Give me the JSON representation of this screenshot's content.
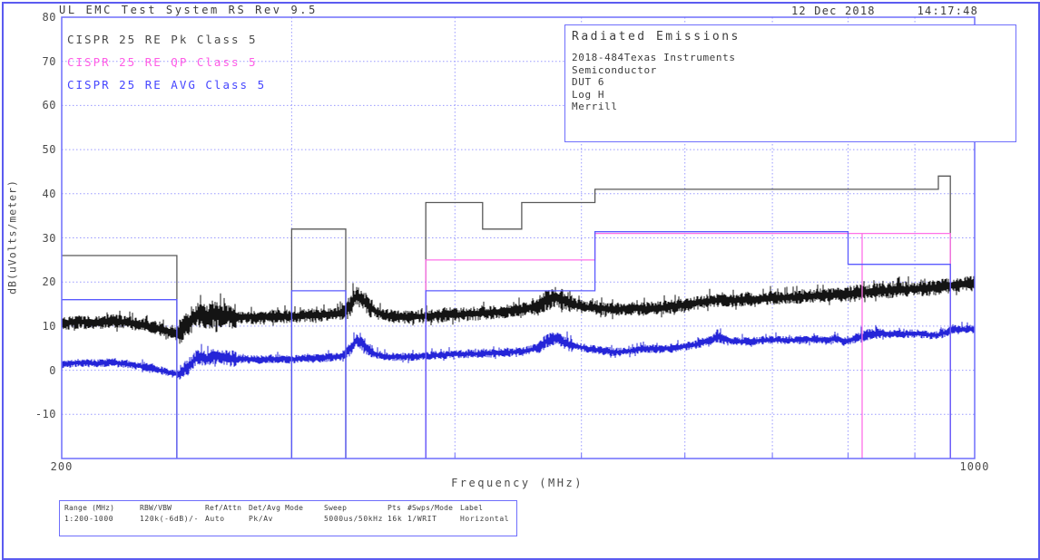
{
  "window": {
    "title": "UL EMC Test System RS Rev 9.5",
    "date": "12 Dec 2018",
    "time": "14:17:48"
  },
  "legend": [
    {
      "label": "CISPR 25 RE Pk Class 5",
      "color": "#4a4a4a"
    },
    {
      "label": "CISPR 25 RE QP Class 5",
      "color": "#ff5ce6"
    },
    {
      "label": "CISPR 25 RE AVG Class 5",
      "color": "#4646ff"
    }
  ],
  "info_box": {
    "title": "Radiated Emissions",
    "lines": [
      "2018-484Texas Instruments",
      "Semiconductor",
      "DUT 6",
      "Log H",
      "Merrill"
    ]
  },
  "axes": {
    "ylabel": "dB(uVolts/meter)",
    "xlabel": "Frequency (MHz)",
    "yticks": [
      "80",
      "70",
      "60",
      "50",
      "40",
      "30",
      "20",
      "10",
      "0",
      "-10"
    ],
    "xticks": [
      {
        "label": "200",
        "f": 200
      },
      {
        "label": "1000",
        "f": 1000
      }
    ]
  },
  "settings_table": {
    "columns": [
      {
        "header": "Range (MHz)",
        "value": "1:200-1000"
      },
      {
        "header": "RBW/VBW",
        "value": "120k(-6dB)/-"
      },
      {
        "header": "Ref/Attn",
        "value": "Auto"
      },
      {
        "header": "Det/Avg Mode",
        "value": "Pk/Av"
      },
      {
        "header": "Sweep",
        "value": "5000us/50kHz"
      },
      {
        "header": "Pts",
        "value": "16k"
      },
      {
        "header": "#Swps/Mode",
        "value": "1/WRIT"
      },
      {
        "header": "Label",
        "value": "Horizontal"
      }
    ]
  },
  "colors": {
    "frame": "#6e6efc",
    "grid": "#9a9aff",
    "pk_limit": "#595959",
    "qp_limit": "#ff70e8",
    "avg_limit": "#5a5aff",
    "pk_trace": "#141414",
    "avg_trace": "#2525d8"
  },
  "chart_data": {
    "type": "line",
    "title": "Radiated Emissions",
    "x_axis": {
      "label": "Frequency (MHz)",
      "scale": "log",
      "min": 200,
      "max": 1000,
      "gridlines": [
        300,
        400,
        500,
        600,
        700,
        800,
        900
      ]
    },
    "y_axis": {
      "label": "dB(uVolts/meter)",
      "min": -20,
      "max": 80,
      "tick_step": 10,
      "grid_values": [
        70,
        60,
        50,
        40,
        30,
        20,
        10,
        0,
        -10
      ]
    },
    "limits": [
      {
        "name": "CISPR 25 RE Pk Class 5",
        "colorKey": "pk_limit",
        "segments": [
          [
            200,
            245,
            26
          ],
          [
            300,
            330,
            32
          ],
          [
            380,
            420,
            38
          ],
          [
            420,
            450,
            32
          ],
          [
            450,
            512,
            38
          ],
          [
            512,
            938,
            41
          ],
          [
            938,
            958,
            44
          ]
        ],
        "breaks": []
      },
      {
        "name": "CISPR 25 RE QP Class 5",
        "colorKey": "qp_limit",
        "segments": [
          [
            380,
            512,
            25
          ],
          [
            512,
            820,
            31
          ],
          [
            820,
            958,
            31
          ]
        ],
        "breaks": [
          820
        ]
      },
      {
        "name": "CISPR 25 RE AVG Class 5",
        "colorKey": "avg_limit",
        "segments": [
          [
            200,
            245,
            16
          ],
          [
            300,
            330,
            18
          ],
          [
            380,
            512,
            18
          ],
          [
            512,
            800,
            31.4
          ],
          [
            800,
            958,
            24
          ]
        ],
        "breaks": []
      }
    ],
    "traces": [
      {
        "name": "Peak detector trace",
        "colorKey": "pk_trace",
        "seed": 7,
        "noise_db": 1.45,
        "clusters": [
          [
            246,
            272,
            1.8
          ],
          [
            328,
            346,
            1.5
          ],
          [
            462,
            492,
            1.5
          ],
          [
            790,
            1000,
            1.15
          ]
        ],
        "points": [
          [
            200,
            10.6
          ],
          [
            206,
            11.0
          ],
          [
            212,
            10.8
          ],
          [
            218,
            11.2
          ],
          [
            224,
            10.8
          ],
          [
            230,
            10.3
          ],
          [
            236,
            9.6
          ],
          [
            242,
            8.8
          ],
          [
            246,
            8.6
          ],
          [
            250,
            10.5
          ],
          [
            254,
            12.6
          ],
          [
            258,
            12.1
          ],
          [
            263,
            12.8
          ],
          [
            268,
            12.2
          ],
          [
            275,
            12.1
          ],
          [
            283,
            12.0
          ],
          [
            291,
            12.2
          ],
          [
            299,
            12.2
          ],
          [
            307,
            12.4
          ],
          [
            315,
            12.5
          ],
          [
            323,
            12.7
          ],
          [
            329,
            13.1
          ],
          [
            333,
            14.8
          ],
          [
            336,
            16.8
          ],
          [
            339,
            16.4
          ],
          [
            343,
            14.9
          ],
          [
            348,
            13.2
          ],
          [
            355,
            12.4
          ],
          [
            363,
            12.1
          ],
          [
            372,
            12.1
          ],
          [
            382,
            12.3
          ],
          [
            392,
            12.5
          ],
          [
            402,
            12.6
          ],
          [
            412,
            12.8
          ],
          [
            422,
            13.0
          ],
          [
            432,
            13.2
          ],
          [
            442,
            13.5
          ],
          [
            452,
            13.9
          ],
          [
            462,
            14.5
          ],
          [
            470,
            15.9
          ],
          [
            477,
            16.6
          ],
          [
            483,
            16.1
          ],
          [
            490,
            15.2
          ],
          [
            498,
            14.6
          ],
          [
            506,
            14.2
          ],
          [
            514,
            14.1
          ],
          [
            524,
            13.9
          ],
          [
            534,
            13.8
          ],
          [
            546,
            14.0
          ],
          [
            558,
            13.9
          ],
          [
            572,
            14.1
          ],
          [
            586,
            14.4
          ],
          [
            600,
            14.8
          ],
          [
            614,
            15.3
          ],
          [
            628,
            15.8
          ],
          [
            640,
            15.9
          ],
          [
            654,
            15.8
          ],
          [
            670,
            16.0
          ],
          [
            686,
            16.2
          ],
          [
            702,
            16.4
          ],
          [
            718,
            16.5
          ],
          [
            734,
            16.6
          ],
          [
            750,
            16.8
          ],
          [
            766,
            17.0
          ],
          [
            782,
            17.1
          ],
          [
            798,
            17.3
          ],
          [
            814,
            17.6
          ],
          [
            830,
            17.8
          ],
          [
            846,
            17.9
          ],
          [
            862,
            18.1
          ],
          [
            878,
            18.3
          ],
          [
            894,
            18.4
          ],
          [
            910,
            18.5
          ],
          [
            926,
            18.7
          ],
          [
            942,
            18.9
          ],
          [
            958,
            19.2
          ],
          [
            974,
            19.5
          ],
          [
            988,
            19.6
          ],
          [
            1000,
            19.8
          ]
        ]
      },
      {
        "name": "Average detector trace",
        "colorKey": "avg_trace",
        "seed": 21,
        "noise_db": 0.9,
        "clusters": [
          [
            246,
            272,
            1.9
          ],
          [
            328,
            346,
            1.6
          ],
          [
            462,
            492,
            1.6
          ],
          [
            623,
            648,
            1.3
          ],
          [
            810,
            850,
            1.35
          ],
          [
            940,
            1000,
            1.15
          ]
        ],
        "points": [
          [
            200,
            1.4
          ],
          [
            206,
            1.7
          ],
          [
            212,
            1.5
          ],
          [
            218,
            1.8
          ],
          [
            224,
            1.4
          ],
          [
            230,
            0.9
          ],
          [
            236,
            0.3
          ],
          [
            242,
            -0.6
          ],
          [
            246,
            -0.9
          ],
          [
            250,
            0.8
          ],
          [
            254,
            3.0
          ],
          [
            258,
            2.6
          ],
          [
            263,
            3.2
          ],
          [
            268,
            2.7
          ],
          [
            275,
            2.5
          ],
          [
            283,
            2.4
          ],
          [
            291,
            2.6
          ],
          [
            299,
            2.5
          ],
          [
            307,
            2.7
          ],
          [
            315,
            2.8
          ],
          [
            323,
            3.0
          ],
          [
            329,
            3.4
          ],
          [
            333,
            5.0
          ],
          [
            336,
            6.6
          ],
          [
            339,
            6.2
          ],
          [
            343,
            4.9
          ],
          [
            348,
            3.6
          ],
          [
            355,
            3.1
          ],
          [
            363,
            3.0
          ],
          [
            372,
            3.1
          ],
          [
            382,
            3.3
          ],
          [
            392,
            3.5
          ],
          [
            402,
            3.6
          ],
          [
            412,
            3.7
          ],
          [
            422,
            3.8
          ],
          [
            432,
            3.9
          ],
          [
            442,
            4.1
          ],
          [
            452,
            4.4
          ],
          [
            462,
            5.0
          ],
          [
            470,
            6.6
          ],
          [
            477,
            7.3
          ],
          [
            483,
            6.6
          ],
          [
            490,
            5.8
          ],
          [
            498,
            5.3
          ],
          [
            506,
            4.9
          ],
          [
            514,
            4.6
          ],
          [
            524,
            4.3
          ],
          [
            534,
            4.1
          ],
          [
            546,
            4.4
          ],
          [
            558,
            4.9
          ],
          [
            572,
            4.8
          ],
          [
            586,
            5.0
          ],
          [
            600,
            5.4
          ],
          [
            614,
            5.9
          ],
          [
            628,
            6.8
          ],
          [
            636,
            7.6
          ],
          [
            645,
            6.9
          ],
          [
            660,
            6.5
          ],
          [
            675,
            6.6
          ],
          [
            690,
            6.8
          ],
          [
            705,
            6.9
          ],
          [
            720,
            6.8
          ],
          [
            735,
            6.9
          ],
          [
            750,
            7.0
          ],
          [
            766,
            6.9
          ],
          [
            782,
            7.1
          ],
          [
            798,
            6.6
          ],
          [
            812,
            7.2
          ],
          [
            824,
            7.9
          ],
          [
            836,
            8.3
          ],
          [
            848,
            8.4
          ],
          [
            862,
            8.1
          ],
          [
            876,
            8.2
          ],
          [
            890,
            8.3
          ],
          [
            905,
            8.3
          ],
          [
            920,
            8.0
          ],
          [
            935,
            7.9
          ],
          [
            950,
            8.6
          ],
          [
            960,
            9.4
          ],
          [
            975,
            9.2
          ],
          [
            990,
            9.3
          ],
          [
            1000,
            9.3
          ]
        ]
      }
    ]
  }
}
